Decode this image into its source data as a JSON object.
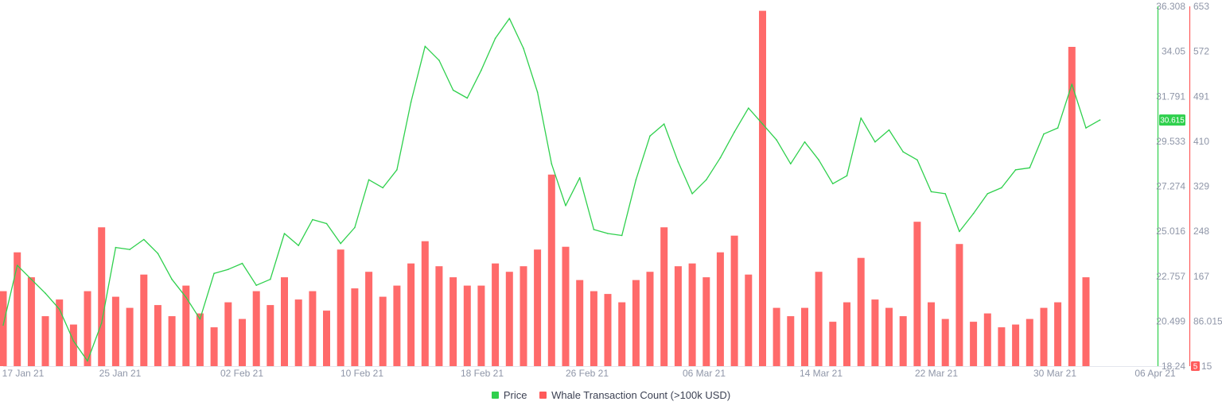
{
  "chart_data": {
    "type": "line+bar",
    "x_ticks": [
      "17 Jan 21",
      "25 Jan 21",
      "02 Feb 21",
      "10 Feb 21",
      "18 Feb 21",
      "26 Feb 21",
      "06 Mar 21",
      "14 Mar 21",
      "22 Mar 21",
      "30 Mar 21",
      "06 Apr 21"
    ],
    "x_range": [
      "2021-01-16",
      "2021-04-06"
    ],
    "price_axis": {
      "ticks": [
        "18.24",
        "20.499",
        "22.757",
        "25.016",
        "27.274",
        "29.533",
        "31.791",
        "34.05",
        "36.308"
      ],
      "ylim": [
        18.24,
        36.308
      ],
      "color": "#2fd04d"
    },
    "count_axis": {
      "ticks": [
        "5",
        "86.015",
        "167",
        "248",
        "329",
        "410",
        "491",
        "572",
        "653"
      ],
      "ylim": [
        5,
        653
      ],
      "color": "#ff5a5a"
    },
    "current_price_label": "30.615",
    "current_count_label": "5",
    "series": [
      {
        "name": "Price",
        "color": "#2fd04d",
        "points": [
          [
            "2021-01-16",
            20.3
          ],
          [
            "2021-01-17",
            23.3
          ],
          [
            "2021-01-18",
            22.6
          ],
          [
            "2021-01-19",
            21.9
          ],
          [
            "2021-01-20",
            21.1
          ],
          [
            "2021-01-21",
            19.5
          ],
          [
            "2021-01-22",
            18.5
          ],
          [
            "2021-01-23",
            20.4
          ],
          [
            "2021-01-24",
            24.2
          ],
          [
            "2021-01-25",
            24.1
          ],
          [
            "2021-01-26",
            24.6
          ],
          [
            "2021-01-27",
            23.9
          ],
          [
            "2021-01-28",
            22.6
          ],
          [
            "2021-01-29",
            21.7
          ],
          [
            "2021-01-30",
            20.6
          ],
          [
            "2021-01-31",
            22.9
          ],
          [
            "2021-02-01",
            23.1
          ],
          [
            "2021-02-02",
            23.4
          ],
          [
            "2021-02-03",
            22.3
          ],
          [
            "2021-02-04",
            22.6
          ],
          [
            "2021-02-05",
            24.9
          ],
          [
            "2021-02-06",
            24.3
          ],
          [
            "2021-02-07",
            25.6
          ],
          [
            "2021-02-08",
            25.4
          ],
          [
            "2021-02-09",
            24.4
          ],
          [
            "2021-02-10",
            25.2
          ],
          [
            "2021-02-11",
            27.6
          ],
          [
            "2021-02-12",
            27.2
          ],
          [
            "2021-02-13",
            28.1
          ],
          [
            "2021-02-14",
            31.5
          ],
          [
            "2021-02-15",
            34.3
          ],
          [
            "2021-02-16",
            33.6
          ],
          [
            "2021-02-17",
            32.1
          ],
          [
            "2021-02-18",
            31.7
          ],
          [
            "2021-02-19",
            33.1
          ],
          [
            "2021-02-20",
            34.7
          ],
          [
            "2021-02-21",
            35.7
          ],
          [
            "2021-02-22",
            34.2
          ],
          [
            "2021-02-23",
            32.0
          ],
          [
            "2021-02-24",
            28.4
          ],
          [
            "2021-02-25",
            26.3
          ],
          [
            "2021-02-26",
            27.7
          ],
          [
            "2021-02-27",
            25.1
          ],
          [
            "2021-02-28",
            24.9
          ],
          [
            "2021-03-01",
            24.8
          ],
          [
            "2021-03-02",
            27.6
          ],
          [
            "2021-03-03",
            29.8
          ],
          [
            "2021-03-04",
            30.4
          ],
          [
            "2021-03-05",
            28.5
          ],
          [
            "2021-03-06",
            26.9
          ],
          [
            "2021-03-07",
            27.6
          ],
          [
            "2021-03-08",
            28.7
          ],
          [
            "2021-03-09",
            30.0
          ],
          [
            "2021-03-10",
            31.2
          ],
          [
            "2021-03-11",
            30.4
          ],
          [
            "2021-03-12",
            29.6
          ],
          [
            "2021-03-13",
            28.4
          ],
          [
            "2021-03-14",
            29.5
          ],
          [
            "2021-03-15",
            28.6
          ],
          [
            "2021-03-16",
            27.4
          ],
          [
            "2021-03-17",
            27.8
          ],
          [
            "2021-03-18",
            30.7
          ],
          [
            "2021-03-19",
            29.5
          ],
          [
            "2021-03-20",
            30.1
          ],
          [
            "2021-03-21",
            29.0
          ],
          [
            "2021-03-22",
            28.6
          ],
          [
            "2021-03-23",
            27.0
          ],
          [
            "2021-03-24",
            26.9
          ],
          [
            "2021-03-25",
            25.0
          ],
          [
            "2021-03-26",
            25.9
          ],
          [
            "2021-03-27",
            26.9
          ],
          [
            "2021-03-28",
            27.2
          ],
          [
            "2021-03-29",
            28.1
          ],
          [
            "2021-03-30",
            28.2
          ],
          [
            "2021-03-31",
            29.9
          ],
          [
            "2021-04-01",
            30.2
          ],
          [
            "2021-04-02",
            32.4
          ],
          [
            "2021-04-03",
            30.2
          ],
          [
            "2021-04-04",
            30.6
          ]
        ]
      },
      {
        "name": "Whale Transaction Count (>100k USD)",
        "color": "#ff5a5a",
        "points": [
          [
            "2021-01-16",
            140
          ],
          [
            "2021-01-17",
            210
          ],
          [
            "2021-01-18",
            165
          ],
          [
            "2021-01-19",
            95
          ],
          [
            "2021-01-20",
            125
          ],
          [
            "2021-01-21",
            80
          ],
          [
            "2021-01-22",
            140
          ],
          [
            "2021-01-23",
            255
          ],
          [
            "2021-01-24",
            130
          ],
          [
            "2021-01-25",
            110
          ],
          [
            "2021-01-26",
            170
          ],
          [
            "2021-01-27",
            115
          ],
          [
            "2021-01-28",
            95
          ],
          [
            "2021-01-29",
            150
          ],
          [
            "2021-01-30",
            100
          ],
          [
            "2021-01-31",
            75
          ],
          [
            "2021-02-01",
            120
          ],
          [
            "2021-02-02",
            90
          ],
          [
            "2021-02-03",
            140
          ],
          [
            "2021-02-04",
            115
          ],
          [
            "2021-02-05",
            165
          ],
          [
            "2021-02-06",
            125
          ],
          [
            "2021-02-07",
            140
          ],
          [
            "2021-02-08",
            105
          ],
          [
            "2021-02-09",
            215
          ],
          [
            "2021-02-10",
            145
          ],
          [
            "2021-02-11",
            175
          ],
          [
            "2021-02-12",
            130
          ],
          [
            "2021-02-13",
            150
          ],
          [
            "2021-02-14",
            190
          ],
          [
            "2021-02-15",
            230
          ],
          [
            "2021-02-16",
            185
          ],
          [
            "2021-02-17",
            165
          ],
          [
            "2021-02-18",
            150
          ],
          [
            "2021-02-19",
            150
          ],
          [
            "2021-02-20",
            190
          ],
          [
            "2021-02-21",
            175
          ],
          [
            "2021-02-22",
            185
          ],
          [
            "2021-02-23",
            215
          ],
          [
            "2021-02-24",
            350
          ],
          [
            "2021-02-25",
            220
          ],
          [
            "2021-02-26",
            160
          ],
          [
            "2021-02-27",
            140
          ],
          [
            "2021-02-28",
            135
          ],
          [
            "2021-03-01",
            120
          ],
          [
            "2021-03-02",
            160
          ],
          [
            "2021-03-03",
            175
          ],
          [
            "2021-03-04",
            255
          ],
          [
            "2021-03-05",
            185
          ],
          [
            "2021-03-06",
            190
          ],
          [
            "2021-03-07",
            165
          ],
          [
            "2021-03-08",
            210
          ],
          [
            "2021-03-09",
            240
          ],
          [
            "2021-03-10",
            170
          ],
          [
            "2021-03-11",
            645
          ],
          [
            "2021-03-12",
            110
          ],
          [
            "2021-03-13",
            95
          ],
          [
            "2021-03-14",
            110
          ],
          [
            "2021-03-15",
            175
          ],
          [
            "2021-03-16",
            85
          ],
          [
            "2021-03-17",
            120
          ],
          [
            "2021-03-18",
            200
          ],
          [
            "2021-03-19",
            125
          ],
          [
            "2021-03-20",
            110
          ],
          [
            "2021-03-21",
            95
          ],
          [
            "2021-03-22",
            265
          ],
          [
            "2021-03-23",
            120
          ],
          [
            "2021-03-24",
            90
          ],
          [
            "2021-03-25",
            225
          ],
          [
            "2021-03-26",
            85
          ],
          [
            "2021-03-27",
            100
          ],
          [
            "2021-03-28",
            75
          ],
          [
            "2021-03-29",
            80
          ],
          [
            "2021-03-30",
            90
          ],
          [
            "2021-03-31",
            110
          ],
          [
            "2021-04-01",
            120
          ],
          [
            "2021-04-02",
            580
          ],
          [
            "2021-04-03",
            165
          ],
          [
            "2021-04-04",
            5
          ]
        ]
      }
    ],
    "legend_position": "bottom-center",
    "grid": false
  }
}
